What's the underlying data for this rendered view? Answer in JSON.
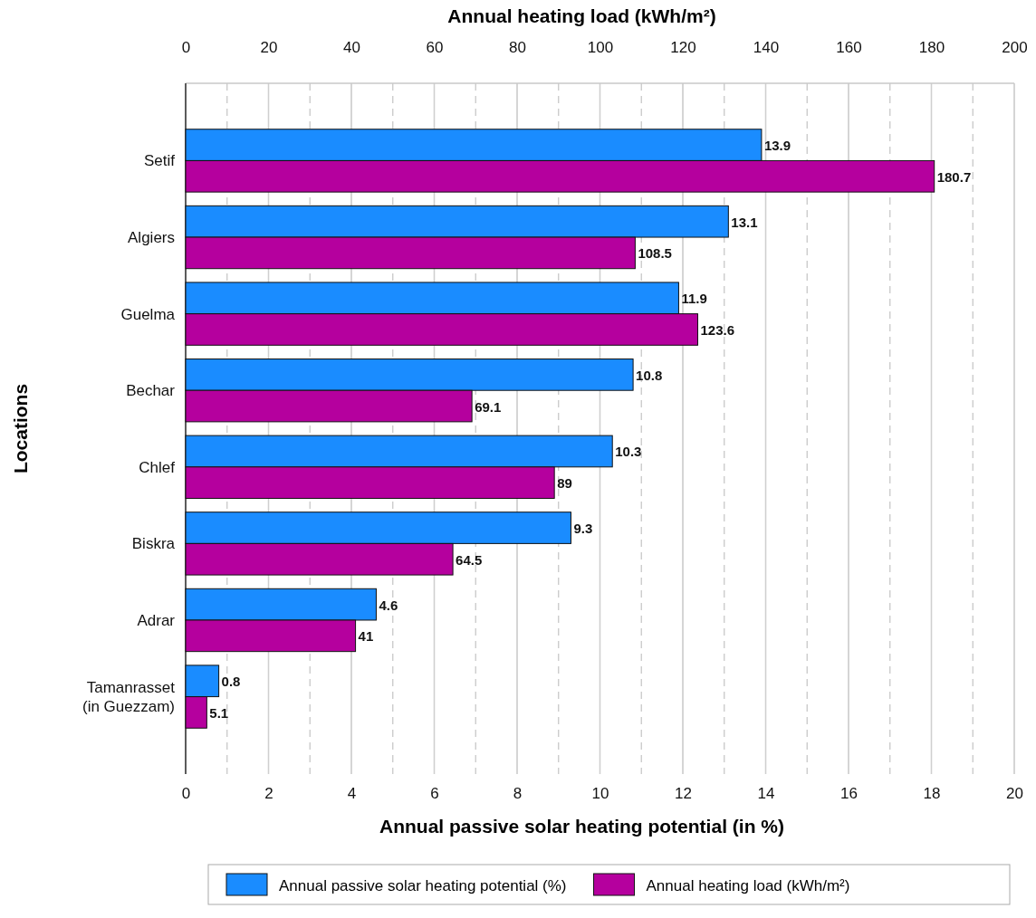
{
  "chart_data": {
    "type": "bar",
    "orientation": "horizontal",
    "xlabel": "Annual passive solar heating potential (in %)",
    "x2label": "Annual heating load (kWh/m²)",
    "ylabel": "Locations",
    "categories": [
      "Setif",
      "Algiers",
      "Guelma",
      "Bechar",
      "Chlef",
      "Biskra",
      "Adrar",
      "Tamanrasset\n(in Guezzam)"
    ],
    "series": [
      {
        "name": "Annual passive solar heating potential (%)",
        "color": "#1a8cff",
        "values": [
          13.9,
          13.1,
          11.9,
          10.8,
          10.3,
          9.3,
          4.6,
          0.8
        ]
      },
      {
        "name": "Annual heating load (kWh/m²)",
        "color": "#b5009e",
        "axis": "x2",
        "values": [
          180.7,
          108.5,
          123.6,
          69.1,
          89,
          64.5,
          41,
          5.1
        ]
      }
    ],
    "xlim": [
      0,
      20
    ],
    "xticks": [
      0,
      2,
      4,
      6,
      8,
      10,
      12,
      14,
      16,
      18,
      20
    ],
    "x2lim": [
      0,
      200
    ],
    "x2ticks": [
      0,
      {
        "value": 10,
        "label": null
      },
      20,
      {
        "value": 30,
        "label": null
      },
      40,
      {
        "value": 50,
        "label": null
      },
      60,
      {
        "value": 70,
        "label": null
      },
      80,
      {
        "value": 90,
        "label": null
      },
      100,
      {
        "value": 110,
        "label": null
      },
      120,
      {
        "value": 130,
        "label": null
      },
      140,
      {
        "value": 150,
        "label": null
      },
      160,
      {
        "value": 170,
        "label": null
      },
      180,
      {
        "value": 190,
        "label": null
      },
      200
    ],
    "grid": "x",
    "legend": "bottom",
    "data_labels": true
  }
}
